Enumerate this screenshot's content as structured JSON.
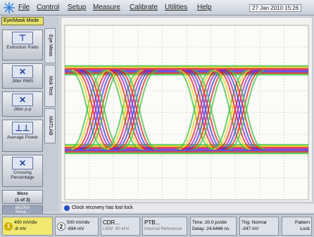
{
  "menu": {
    "items": [
      "File",
      "Control",
      "Setup",
      "Measure",
      "Calibrate",
      "Utilities",
      "Help"
    ],
    "datetime": "27 Jan 2010 15:26"
  },
  "mode_label": "Eye/Mask Mode",
  "measurements": [
    "Extinction Ratio",
    "Jitter RMS",
    "Jitter p-p",
    "Average Power",
    "Crossing Percentage"
  ],
  "more": [
    "More",
    "(1 of 3)"
  ],
  "tabs": [
    "Eye Meas",
    "Msk Test",
    "MATLAB"
  ],
  "setup_button": [
    "86100A",
    "Setup..."
  ],
  "status_message": "Clock recovery has lost lock",
  "channels": [
    {
      "number": "1",
      "scale": "400 mV/div",
      "offset": "-8 mV"
    },
    {
      "number": "2",
      "scale": "500 mV/div",
      "offset": "-694 mV"
    }
  ],
  "cdr": {
    "title": "CDR...",
    "detail": "LBW: 40 kHz"
  },
  "ptb": {
    "title": "PTB...",
    "detail": "Internal Reference"
  },
  "timebase": {
    "scale": "Time: 20.0 ps/div",
    "delay": "Delay: 24.6446 ns"
  },
  "trigger": {
    "mode": "Trig: Normal",
    "level": "-347 mV"
  },
  "pattern": [
    "Pattern",
    "Lock"
  ]
}
